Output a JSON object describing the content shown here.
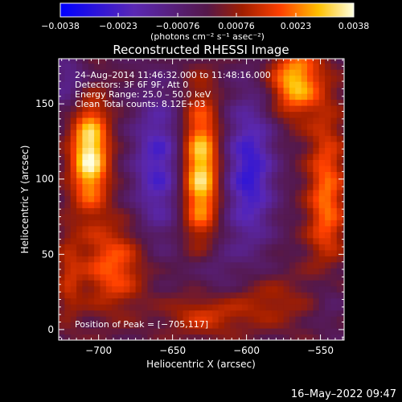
{
  "chart_data": {
    "type": "heatmap",
    "title": "Reconstructed RHESSI Image",
    "xlabel": "Heliocentric X (arcsec)",
    "ylabel": "Heliocentric Y (arcsec)",
    "xlim": [
      -727,
      -534
    ],
    "ylim": [
      -7,
      180
    ],
    "xticks": [
      -700,
      -650,
      -600,
      -550
    ],
    "xtick_labels": [
      "−700",
      "−650",
      "−600",
      "−550"
    ],
    "yticks": [
      0,
      50,
      100,
      150
    ],
    "ytick_labels": [
      "0",
      "50",
      "100",
      "150"
    ],
    "colorbar": {
      "range": [
        -0.0038,
        0.0038
      ],
      "ticks": [
        -0.0038,
        -0.0023,
        -0.00076,
        0.00076,
        0.0023,
        0.0038
      ],
      "tick_labels": [
        "−0.0038",
        "−0.0023",
        "−0.00076",
        "0.00076",
        "0.0023",
        "0.0038"
      ],
      "units_label": "(photons cm⁻² s⁻¹ asec⁻²)"
    },
    "info_lines": [
      "24–Aug–2014 11:46:32.000 to 11:48:16.000",
      "Detectors: 3F 6F 9F, Att 0",
      "Energy Range: 25.0 – 50.0 keV",
      "Clean     Total counts: 8.12E+03"
    ],
    "peak_label": "Position of Peak = [−705,117]",
    "peak": [
      -705,
      117
    ],
    "sources": [
      {
        "x": -706,
        "y": 117,
        "amp": 1.0,
        "sx": 9,
        "sy": 25
      },
      {
        "x": -631,
        "y": 105,
        "amp": 0.92,
        "sx": 9,
        "sy": 35
      },
      {
        "x": -567,
        "y": 165,
        "amp": 0.8,
        "sx": 12,
        "sy": 16
      },
      {
        "x": -546,
        "y": 85,
        "amp": 0.6,
        "sx": 9,
        "sy": 42
      },
      {
        "x": -690,
        "y": 42,
        "amp": 0.55,
        "sx": 15,
        "sy": 20
      },
      {
        "x": -720,
        "y": 35,
        "amp": 0.3,
        "sx": 6,
        "sy": 22
      },
      {
        "x": -628,
        "y": 10,
        "amp": 0.4,
        "sx": 18,
        "sy": 10
      },
      {
        "x": -585,
        "y": 18,
        "amp": 0.28,
        "sx": 18,
        "sy": 12
      },
      {
        "x": -660,
        "y": 110,
        "amp": -0.6,
        "sx": 12,
        "sy": 35
      },
      {
        "x": -598,
        "y": 105,
        "amp": -0.7,
        "sx": 12,
        "sy": 35
      },
      {
        "x": -625,
        "y": 40,
        "amp": -0.25,
        "sx": 12,
        "sy": 18
      },
      {
        "x": -720,
        "y": 165,
        "amp": -0.35,
        "sx": 10,
        "sy": 15
      },
      {
        "x": -545,
        "y": 25,
        "amp": -0.3,
        "sx": 8,
        "sy": 20
      }
    ],
    "grid": false
  },
  "timestamp": "16–May–2022 09:47"
}
